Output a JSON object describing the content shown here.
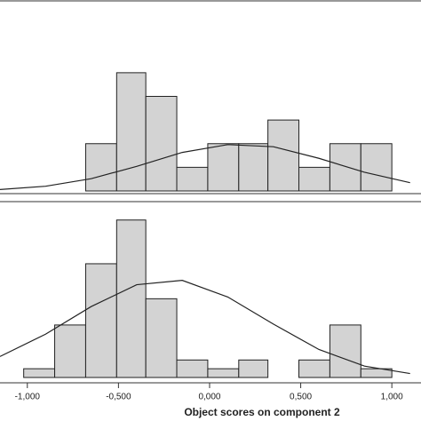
{
  "chart_data": [
    {
      "type": "histogram",
      "color": "#d3d3d3",
      "bins": [
        -0.68,
        -0.51,
        -0.35,
        -0.18,
        -0.01,
        0.16,
        0.32,
        0.49,
        0.66,
        0.83,
        1.0
      ],
      "values": [
        2,
        5,
        4,
        1,
        2,
        2,
        3,
        1,
        2,
        2
      ],
      "curve_x": [
        -1.15,
        -0.9,
        -0.65,
        -0.4,
        -0.15,
        0.1,
        0.35,
        0.6,
        0.85,
        1.1
      ],
      "curve_y": [
        0.06,
        0.2,
        0.52,
        1.04,
        1.63,
        1.96,
        1.87,
        1.38,
        0.79,
        0.35
      ],
      "xlim": [
        -1.15,
        1.16
      ],
      "ylim": [
        0,
        8
      ]
    },
    {
      "type": "histogram",
      "color": "#d3d3d3",
      "bins": [
        -1.02,
        -0.85,
        -0.68,
        -0.51,
        -0.35,
        -0.18,
        -0.01,
        0.16,
        0.32,
        0.49,
        0.66,
        0.83,
        1.0
      ],
      "values": [
        1,
        6,
        13,
        18,
        9,
        2,
        1,
        2,
        0,
        2,
        6,
        1
      ],
      "curve_x": [
        -1.15,
        -0.9,
        -0.65,
        -0.4,
        -0.15,
        0.1,
        0.35,
        0.6,
        0.85,
        1.1
      ],
      "curve_y": [
        2.4,
        4.95,
        8.1,
        10.6,
        11.1,
        9.2,
        6.1,
        3.2,
        1.3,
        0.45
      ],
      "xlim": [
        -1.15,
        1.16
      ],
      "ylim": [
        0,
        20
      ],
      "xticks": [
        {
          "value": -1,
          "label": "-1,000"
        },
        {
          "value": -0.5,
          "label": "-0,500"
        },
        {
          "value": 0,
          "label": "0,000"
        },
        {
          "value": 0.5,
          "label": "0,500"
        },
        {
          "value": 1,
          "label": "1,000"
        }
      ],
      "xlabel": "Object scores on component 2"
    }
  ]
}
